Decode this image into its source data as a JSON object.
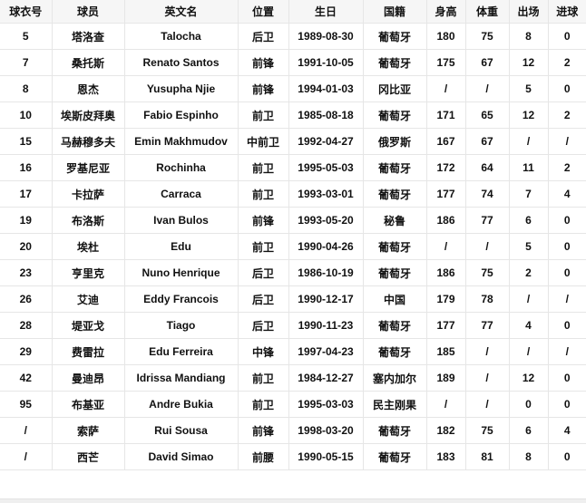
{
  "columns": [
    "球衣号",
    "球员",
    "英文名",
    "位置",
    "生日",
    "国籍",
    "身高",
    "体重",
    "出场",
    "进球"
  ],
  "rows": [
    [
      "5",
      "塔洛查",
      "Talocha",
      "后卫",
      "1989-08-30",
      "葡萄牙",
      "180",
      "75",
      "8",
      "0"
    ],
    [
      "7",
      "桑托斯",
      "Renato Santos",
      "前锋",
      "1991-10-05",
      "葡萄牙",
      "175",
      "67",
      "12",
      "2"
    ],
    [
      "8",
      "恩杰",
      "Yusupha Njie",
      "前锋",
      "1994-01-03",
      "冈比亚",
      "/",
      "/",
      "5",
      "0"
    ],
    [
      "10",
      "埃斯皮拜奥",
      "Fabio Espinho",
      "前卫",
      "1985-08-18",
      "葡萄牙",
      "171",
      "65",
      "12",
      "2"
    ],
    [
      "15",
      "马赫穆多夫",
      "Emin Makhmudov",
      "中前卫",
      "1992-04-27",
      "俄罗斯",
      "167",
      "67",
      "/",
      "/"
    ],
    [
      "16",
      "罗基尼亚",
      "Rochinha",
      "前卫",
      "1995-05-03",
      "葡萄牙",
      "172",
      "64",
      "11",
      "2"
    ],
    [
      "17",
      "卡拉萨",
      "Carraca",
      "前卫",
      "1993-03-01",
      "葡萄牙",
      "177",
      "74",
      "7",
      "4"
    ],
    [
      "19",
      "布洛斯",
      "Ivan Bulos",
      "前锋",
      "1993-05-20",
      "秘鲁",
      "186",
      "77",
      "6",
      "0"
    ],
    [
      "20",
      "埃杜",
      "Edu",
      "前卫",
      "1990-04-26",
      "葡萄牙",
      "/",
      "/",
      "5",
      "0"
    ],
    [
      "23",
      "亨里克",
      "Nuno Henrique",
      "后卫",
      "1986-10-19",
      "葡萄牙",
      "186",
      "75",
      "2",
      "0"
    ],
    [
      "26",
      "艾迪",
      "Eddy Francois",
      "后卫",
      "1990-12-17",
      "中国",
      "179",
      "78",
      "/",
      "/"
    ],
    [
      "28",
      "堤亚戈",
      "Tiago",
      "后卫",
      "1990-11-23",
      "葡萄牙",
      "177",
      "77",
      "4",
      "0"
    ],
    [
      "29",
      "费雷拉",
      "Edu Ferreira",
      "中锋",
      "1997-04-23",
      "葡萄牙",
      "185",
      "/",
      "/",
      "/"
    ],
    [
      "42",
      "曼迪昂",
      "Idrissa Mandiang",
      "前卫",
      "1984-12-27",
      "塞内加尔",
      "189",
      "/",
      "12",
      "0"
    ],
    [
      "95",
      "布基亚",
      "Andre Bukia",
      "前卫",
      "1995-03-03",
      "民主刚果",
      "/",
      "/",
      "0",
      "0"
    ],
    [
      "/",
      "索萨",
      "Rui Sousa",
      "前锋",
      "1998-03-20",
      "葡萄牙",
      "182",
      "75",
      "6",
      "4"
    ],
    [
      "/",
      "西芒",
      "David Simao",
      "前腰",
      "1990-05-15",
      "葡萄牙",
      "183",
      "81",
      "8",
      "0"
    ]
  ]
}
